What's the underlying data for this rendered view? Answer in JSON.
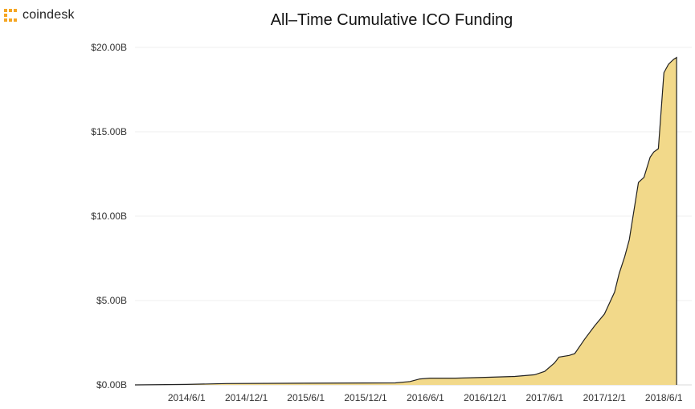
{
  "brand": {
    "name": "coindesk",
    "logo_icon": "coindesk-logo-icon",
    "logo_color": "#F5A623"
  },
  "chart_data": {
    "type": "area",
    "title": "All–Time Cumulative ICO Funding",
    "xlabel": "",
    "ylabel": "",
    "y_tick_labels": [
      "$0.00B",
      "$5.00B",
      "$10.00B",
      "$15.00B",
      "$20.00B"
    ],
    "y_ticks": [
      0,
      5,
      10,
      15,
      20
    ],
    "ylim": [
      0,
      20
    ],
    "x_tick_labels": [
      "2014/6/1",
      "2014/12/1",
      "2015/6/1",
      "2015/12/1",
      "2016/6/1",
      "2016/12/1",
      "2017/6/1",
      "2017/12/1",
      "2018/6/1"
    ],
    "x_ticks": [
      "2014-06-01",
      "2014-12-01",
      "2015-06-01",
      "2015-12-01",
      "2016-06-01",
      "2016-12-01",
      "2017-06-01",
      "2017-12-01",
      "2018-06-01"
    ],
    "xlim": [
      "2013-12-25",
      "2018-07-22"
    ],
    "grid": true,
    "fill_color": "#F2D98A",
    "line_color": "#222222",
    "series": [
      {
        "x": [
          "2013-12-25",
          "2014-06-01",
          "2014-10-01",
          "2015-06-01",
          "2016-03-01",
          "2016-04-15",
          "2016-05-15",
          "2016-06-15",
          "2016-09-01",
          "2016-12-01",
          "2017-03-01",
          "2017-05-01",
          "2017-06-01",
          "2017-07-01",
          "2017-07-15",
          "2017-08-15",
          "2017-09-01",
          "2017-10-01",
          "2017-11-01",
          "2017-12-01",
          "2018-01-01",
          "2018-01-15",
          "2018-02-01",
          "2018-02-15",
          "2018-03-01",
          "2018-03-15",
          "2018-04-01",
          "2018-04-20",
          "2018-05-01",
          "2018-05-15",
          "2018-06-01",
          "2018-06-15",
          "2018-07-01",
          "2018-07-10"
        ],
        "y": [
          0.0,
          0.03,
          0.08,
          0.1,
          0.12,
          0.2,
          0.35,
          0.4,
          0.4,
          0.45,
          0.5,
          0.6,
          0.8,
          1.3,
          1.65,
          1.75,
          1.85,
          2.7,
          3.5,
          4.2,
          5.5,
          6.6,
          7.6,
          8.6,
          10.3,
          12.0,
          12.3,
          13.5,
          13.8,
          14.0,
          18.5,
          19.0,
          19.3,
          19.4
        ]
      }
    ]
  }
}
